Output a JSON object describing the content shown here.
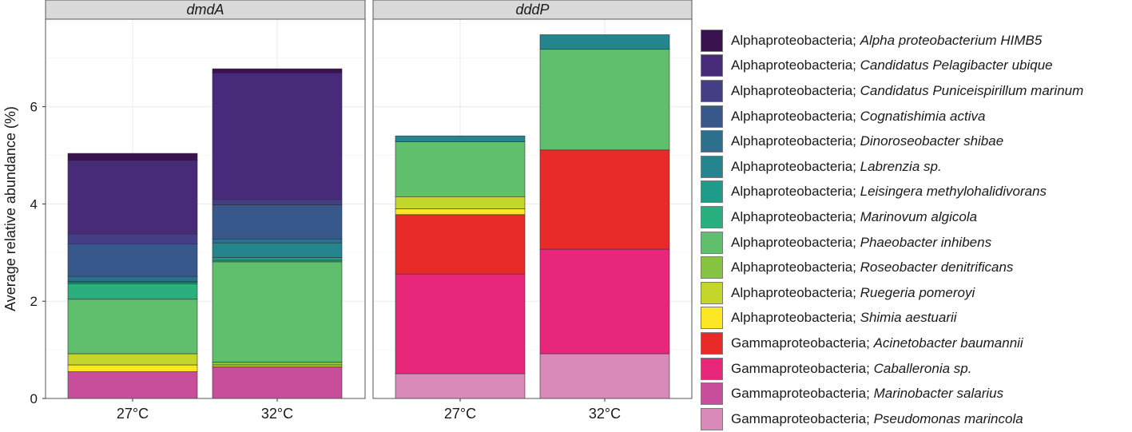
{
  "chart_data": {
    "type": "bar",
    "stacked": true,
    "ylabel": "Average relative abundance (%)",
    "ylim": [
      0,
      7.8
    ],
    "yticks": [
      0,
      2,
      4,
      6
    ],
    "grid": true,
    "legend_position": "right",
    "categories": [
      "27°C",
      "32°C"
    ],
    "panels": [
      "dmdA",
      "dddP"
    ],
    "series": [
      {
        "name_prefix": "Alphaproteobacteria; ",
        "name_species": "Alpha proteobacterium HIMB5",
        "color": "#3b1250",
        "values": {
          "dmdA": [
            0.15,
            0.09
          ],
          "dddP": [
            0,
            0
          ]
        }
      },
      {
        "name_prefix": "Alphaproteobacteria; ",
        "name_species": "Candidatus Pelagibacter ubique",
        "color": "#472a7a",
        "values": {
          "dmdA": [
            1.51,
            2.6
          ],
          "dddP": [
            0,
            0
          ]
        }
      },
      {
        "name_prefix": "Alphaproteobacteria; ",
        "name_species": "Candidatus Puniceispirillum marinum",
        "color": "#433e85",
        "values": {
          "dmdA": [
            0.2,
            0.11
          ],
          "dddP": [
            0,
            0
          ]
        }
      },
      {
        "name_prefix": "Alphaproteobacteria; ",
        "name_species": "Cognatishimia activa",
        "color": "#38588c",
        "values": {
          "dmdA": [
            0.67,
            0.7
          ],
          "dddP": [
            0,
            0
          ]
        }
      },
      {
        "name_prefix": "Alphaproteobacteria; ",
        "name_species": "Dinoroseobacter shibae",
        "color": "#2d708e",
        "values": {
          "dmdA": [
            0.1,
            0.08
          ],
          "dddP": [
            0,
            0
          ]
        }
      },
      {
        "name_prefix": "Alphaproteobacteria; ",
        "name_species": "Labrenzia sp.",
        "color": "#25858e",
        "values": {
          "dmdA": [
            0.02,
            0.3
          ],
          "dddP": [
            0.12,
            0.3
          ]
        }
      },
      {
        "name_prefix": "Alphaproteobacteria; ",
        "name_species": "Leisingera methylohalidivorans",
        "color": "#1e9b8a",
        "values": {
          "dmdA": [
            0.03,
            0.06
          ],
          "dddP": [
            0,
            0
          ]
        }
      },
      {
        "name_prefix": "Alphaproteobacteria; ",
        "name_species": "Marinovum algicola",
        "color": "#2ab07f",
        "values": {
          "dmdA": [
            0.32,
            0.03
          ],
          "dddP": [
            0,
            0
          ]
        }
      },
      {
        "name_prefix": "Alphaproteobacteria; ",
        "name_species": "Phaeobacter inhibens",
        "color": "#5fbf6d",
        "values": {
          "dmdA": [
            1.12,
            2.06
          ],
          "dddP": [
            1.13,
            2.07
          ]
        }
      },
      {
        "name_prefix": "Alphaproteobacteria; ",
        "name_species": "Roseobacter denitrificans",
        "color": "#86c441",
        "values": {
          "dmdA": [
            0,
            0.06
          ],
          "dddP": [
            0,
            0
          ]
        }
      },
      {
        "name_prefix": "Alphaproteobacteria; ",
        "name_species": "Ruegeria pomeroyi",
        "color": "#c5d62b",
        "values": {
          "dmdA": [
            0.23,
            0.04
          ],
          "dddP": [
            0.25,
            0
          ]
        }
      },
      {
        "name_prefix": "Alphaproteobacteria; ",
        "name_species": "Shimia aestuarii",
        "color": "#fde725",
        "values": {
          "dmdA": [
            0.14,
            0
          ],
          "dddP": [
            0.12,
            0
          ]
        }
      },
      {
        "name_prefix": "Gammaproteobacteria; ",
        "name_species": "Acinetobacter baumannii",
        "color": "#e82a28",
        "values": {
          "dmdA": [
            0,
            0
          ],
          "dddP": [
            1.22,
            2.04
          ]
        }
      },
      {
        "name_prefix": "Gammaproteobacteria; ",
        "name_species": "Caballeronia sp.",
        "color": "#e8277b",
        "values": {
          "dmdA": [
            0,
            0
          ],
          "dddP": [
            2.05,
            2.15
          ]
        }
      },
      {
        "name_prefix": "Gammaproteobacteria; ",
        "name_species": "Marinobacter salarius",
        "color": "#c84e9c",
        "values": {
          "dmdA": [
            0.55,
            0.65
          ],
          "dddP": [
            0,
            0
          ]
        }
      },
      {
        "name_prefix": "Gammaproteobacteria; ",
        "name_species": "Pseudomonas marincola",
        "color": "#d98ab9",
        "values": {
          "dmdA": [
            0,
            0
          ],
          "dddP": [
            0.51,
            0.92
          ]
        }
      }
    ]
  }
}
